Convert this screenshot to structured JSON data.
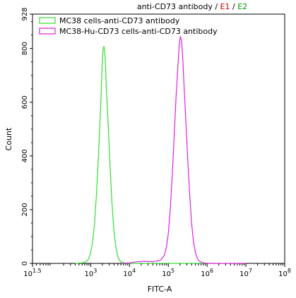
{
  "chart_data": {
    "type": "line",
    "title": {
      "prefix": "anti-CD73 antibody /",
      "e1": "E1",
      "separator": "/",
      "e2": "E2",
      "e1_color": "#cc0000",
      "e2_color": "#009900"
    },
    "xlabel": "FITC-A",
    "ylabel": "Count",
    "x_scale": "log",
    "x_range": [
      1.5,
      8
    ],
    "xticks": [
      {
        "exp": 1.5,
        "base": "10",
        "sup": "1.5"
      },
      {
        "exp": 3,
        "base": "10",
        "sup": "3"
      },
      {
        "exp": 4,
        "base": "10",
        "sup": "4"
      },
      {
        "exp": 5,
        "base": "10",
        "sup": "5"
      },
      {
        "exp": 6,
        "base": "10",
        "sup": "6"
      },
      {
        "exp": 7,
        "base": "10",
        "sup": "7"
      },
      {
        "exp": 8,
        "base": "10",
        "sup": "8"
      }
    ],
    "ylim": [
      0,
      928
    ],
    "yticks": [
      {
        "v": 0,
        "label": "0"
      },
      {
        "v": 200,
        "label": "200"
      },
      {
        "v": 400,
        "label": "400"
      },
      {
        "v": 600,
        "label": "600"
      },
      {
        "v": 800,
        "label": "800"
      },
      {
        "v": 928,
        "label": "928"
      }
    ],
    "legend_position": "top-left",
    "series": [
      {
        "name": "MC38 cells-anti-CD73 antibody",
        "color": "#33dd33",
        "points": [
          [
            2.6,
            0
          ],
          [
            2.8,
            2
          ],
          [
            2.9,
            8
          ],
          [
            2.95,
            18
          ],
          [
            3.0,
            40
          ],
          [
            3.05,
            80
          ],
          [
            3.1,
            150
          ],
          [
            3.15,
            260
          ],
          [
            3.2,
            400
          ],
          [
            3.25,
            560
          ],
          [
            3.28,
            680
          ],
          [
            3.3,
            760
          ],
          [
            3.32,
            800
          ],
          [
            3.34,
            808
          ],
          [
            3.36,
            790
          ],
          [
            3.38,
            740
          ],
          [
            3.4,
            660
          ],
          [
            3.45,
            520
          ],
          [
            3.5,
            360
          ],
          [
            3.55,
            220
          ],
          [
            3.6,
            120
          ],
          [
            3.65,
            60
          ],
          [
            3.7,
            25
          ],
          [
            3.75,
            10
          ],
          [
            3.8,
            4
          ],
          [
            3.9,
            1
          ],
          [
            4.0,
            0
          ],
          [
            6.2,
            0
          ]
        ]
      },
      {
        "name": "MC38-Hu-CD73 cells-anti-CD73 antibody",
        "color": "#e020e0",
        "points": [
          [
            3.8,
            0
          ],
          [
            4.0,
            2
          ],
          [
            4.2,
            6
          ],
          [
            4.4,
            8
          ],
          [
            4.6,
            6
          ],
          [
            4.8,
            12
          ],
          [
            4.9,
            30
          ],
          [
            4.95,
            60
          ],
          [
            5.0,
            110
          ],
          [
            5.05,
            200
          ],
          [
            5.1,
            320
          ],
          [
            5.15,
            470
          ],
          [
            5.2,
            620
          ],
          [
            5.25,
            740
          ],
          [
            5.28,
            810
          ],
          [
            5.31,
            845
          ],
          [
            5.34,
            830
          ],
          [
            5.37,
            770
          ],
          [
            5.4,
            680
          ],
          [
            5.45,
            540
          ],
          [
            5.5,
            390
          ],
          [
            5.55,
            260
          ],
          [
            5.6,
            150
          ],
          [
            5.65,
            80
          ],
          [
            5.7,
            40
          ],
          [
            5.75,
            18
          ],
          [
            5.8,
            8
          ],
          [
            5.9,
            2
          ],
          [
            6.0,
            0
          ],
          [
            7.0,
            0
          ]
        ]
      }
    ]
  }
}
